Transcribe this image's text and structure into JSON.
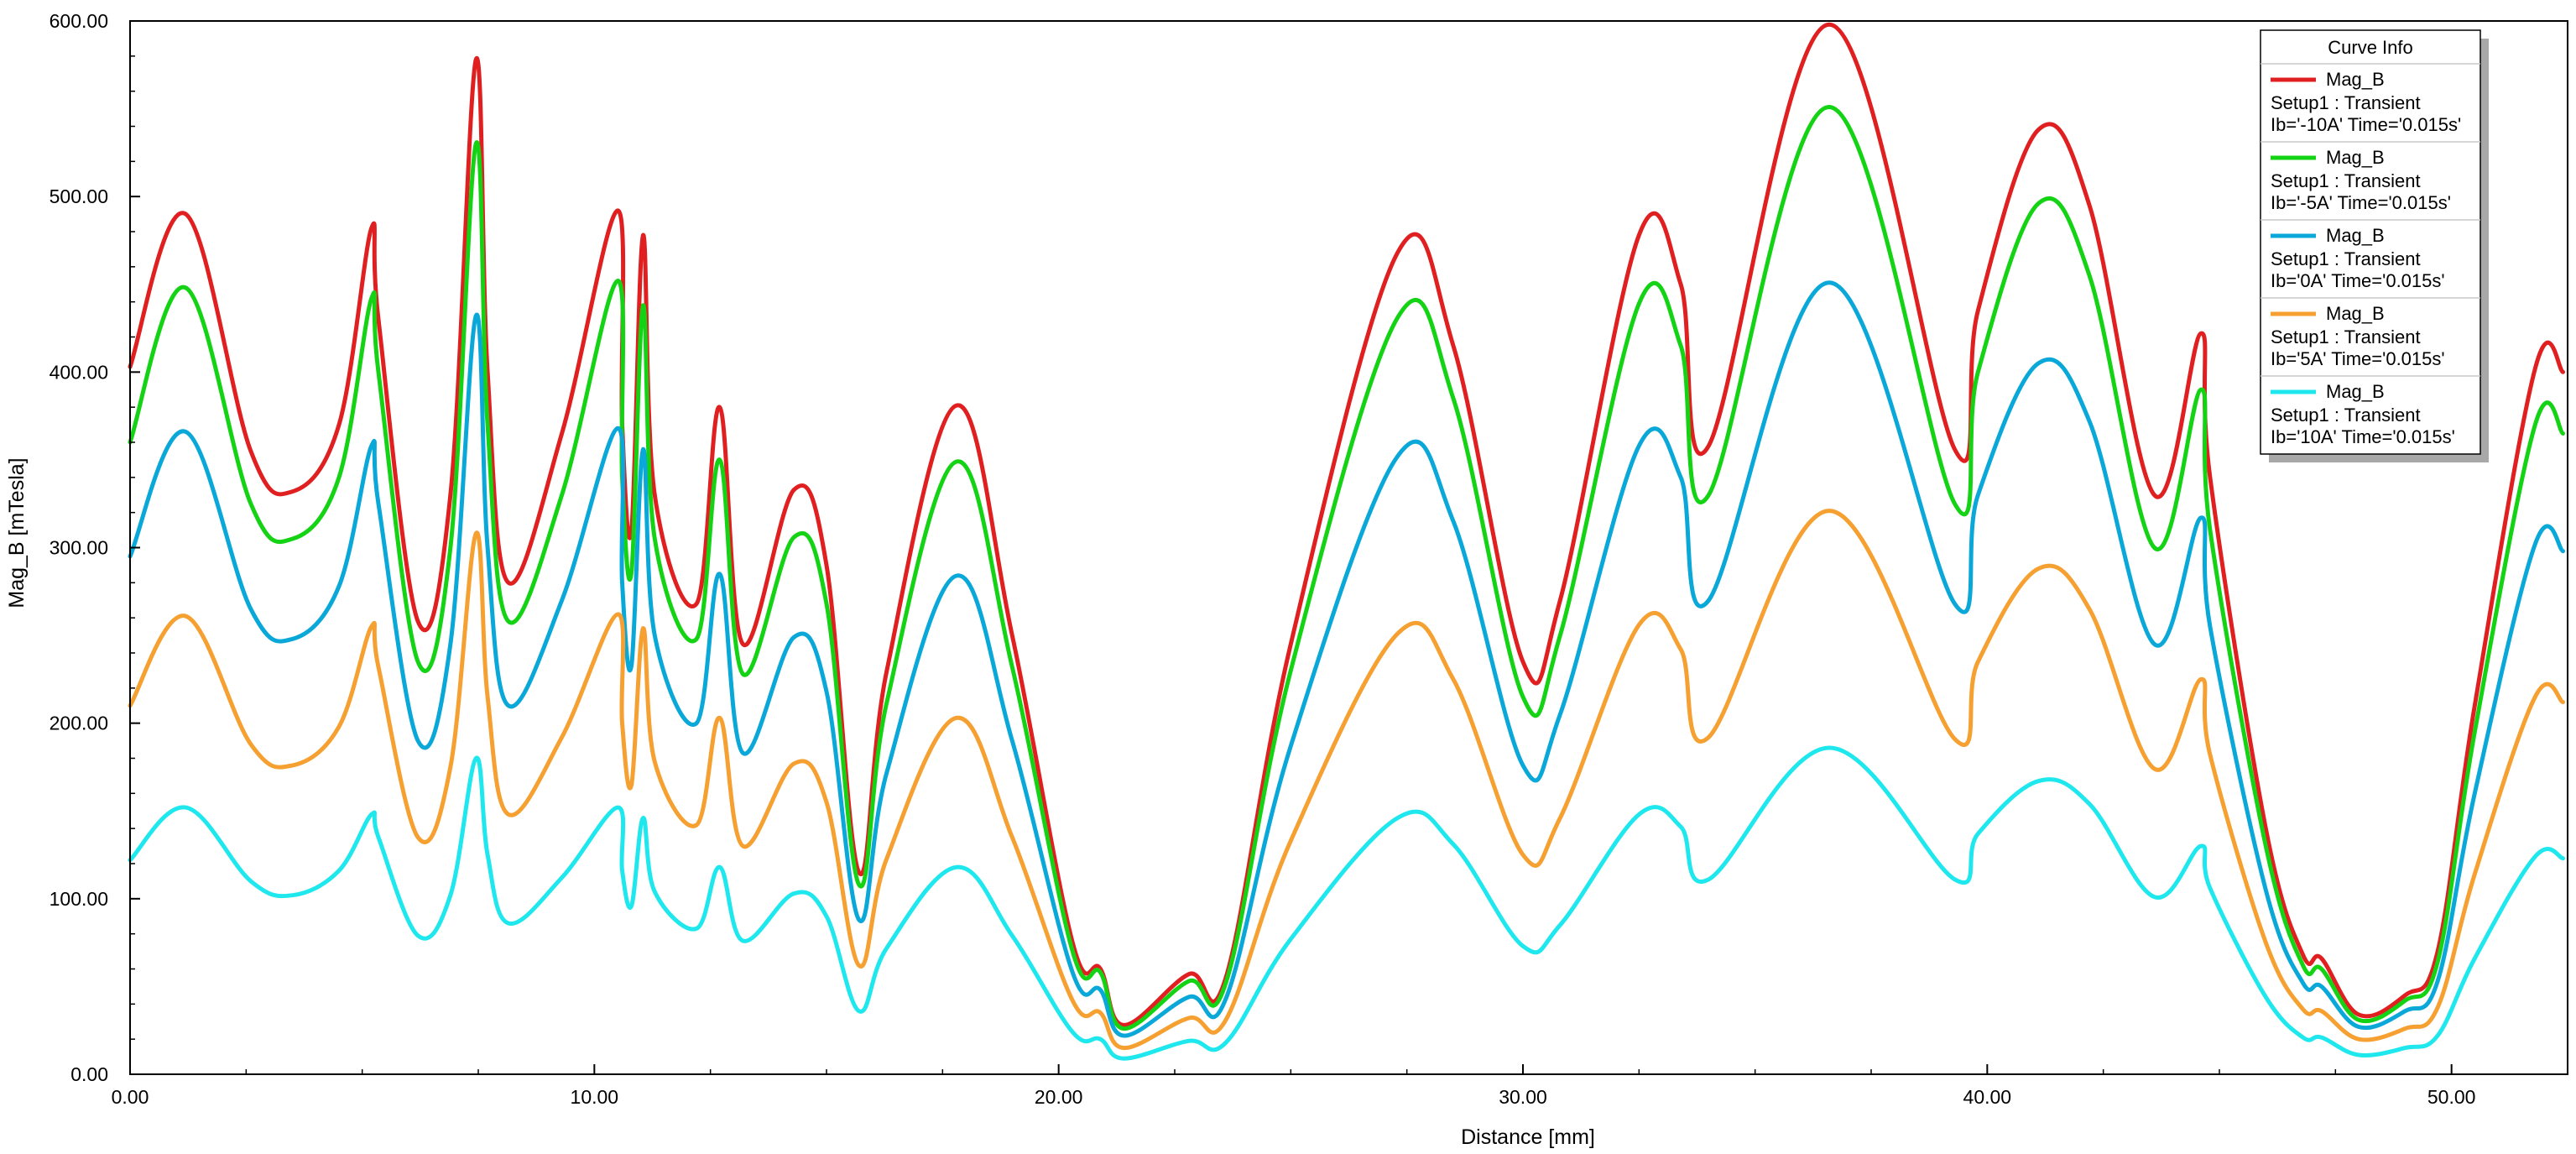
{
  "chart_data": {
    "type": "line",
    "xlabel": "Distance [mm]",
    "ylabel": "Mag_B [mTesla]",
    "xlim": [
      0,
      52.5
    ],
    "ylim": [
      0,
      600
    ],
    "xticks": [
      "0.00",
      "10.00",
      "20.00",
      "30.00",
      "40.00",
      "50.00"
    ],
    "xtick_values": [
      0,
      10,
      20,
      30,
      40,
      50
    ],
    "yticks": [
      "0.00",
      "100.00",
      "200.00",
      "300.00",
      "400.00",
      "500.00",
      "600.00"
    ],
    "ytick_values": [
      0,
      100,
      200,
      300,
      400,
      500,
      600
    ],
    "grid": false,
    "legend": {
      "title": "Curve Info",
      "placement": "top-right",
      "entries": [
        {
          "name": "Mag_B",
          "line2": "Setup1 : Transient",
          "line3": "Ib='-10A' Time='0.015s'",
          "color": "#e02020"
        },
        {
          "name": "Mag_B",
          "line2": "Setup1 : Transient",
          "line3": "Ib='-5A' Time='0.015s'",
          "color": "#14d314"
        },
        {
          "name": "Mag_B",
          "line2": "Setup1 : Transient",
          "line3": "Ib='0A' Time='0.015s'",
          "color": "#0aa8d8"
        },
        {
          "name": "Mag_B",
          "line2": "Setup1 : Transient",
          "line3": "Ib='5A' Time='0.015s'",
          "color": "#f5a030"
        },
        {
          "name": "Mag_B",
          "line2": "Setup1 : Transient",
          "line3": "Ib='10A' Time='0.015s'",
          "color": "#1ee8ee"
        }
      ]
    },
    "series": [
      {
        "name": "Ib='-10A' Time='0.015s'",
        "color": "#e02020",
        "points": [
          [
            0,
            403
          ],
          [
            1.2,
            490
          ],
          [
            2.6,
            355
          ],
          [
            3.5,
            332
          ],
          [
            4.5,
            370
          ],
          [
            5.2,
            482
          ],
          [
            5.35,
            430
          ],
          [
            6.2,
            258
          ],
          [
            6.9,
            330
          ],
          [
            7.45,
            578
          ],
          [
            7.7,
            400
          ],
          [
            8.15,
            280
          ],
          [
            9.3,
            365
          ],
          [
            10.5,
            492
          ],
          [
            10.6,
            370
          ],
          [
            10.8,
            310
          ],
          [
            11.05,
            478
          ],
          [
            11.3,
            330
          ],
          [
            12.2,
            268
          ],
          [
            12.7,
            380
          ],
          [
            13.2,
            245
          ],
          [
            14.3,
            333
          ],
          [
            15.0,
            290
          ],
          [
            15.7,
            115
          ],
          [
            16.3,
            230
          ],
          [
            17.8,
            381
          ],
          [
            19.0,
            250
          ],
          [
            20.3,
            75
          ],
          [
            20.9,
            60
          ],
          [
            21.4,
            28
          ],
          [
            22.8,
            57
          ],
          [
            23.6,
            55
          ],
          [
            25.0,
            245
          ],
          [
            27.3,
            468
          ],
          [
            28.5,
            415
          ],
          [
            30.0,
            235
          ],
          [
            30.8,
            270
          ],
          [
            32.5,
            478
          ],
          [
            33.4,
            450
          ],
          [
            34.0,
            358
          ],
          [
            36.6,
            598
          ],
          [
            39.3,
            356
          ],
          [
            39.8,
            435
          ],
          [
            41.1,
            538
          ],
          [
            42.2,
            495
          ],
          [
            43.6,
            330
          ],
          [
            44.6,
            422
          ],
          [
            44.8,
            340
          ],
          [
            46.0,
            140
          ],
          [
            46.8,
            68
          ],
          [
            47.2,
            66
          ],
          [
            48.0,
            34
          ],
          [
            49.0,
            45
          ],
          [
            49.7,
            70
          ],
          [
            50.5,
            210
          ],
          [
            51.8,
            402
          ],
          [
            52.4,
            400
          ]
        ]
      },
      {
        "name": "Ib='-5A' Time='0.015s'",
        "color": "#14d314",
        "points": [
          [
            0,
            360
          ],
          [
            1.2,
            448
          ],
          [
            2.6,
            325
          ],
          [
            3.5,
            305
          ],
          [
            4.5,
            340
          ],
          [
            5.2,
            442
          ],
          [
            5.35,
            400
          ],
          [
            6.2,
            235
          ],
          [
            6.9,
            300
          ],
          [
            7.45,
            530
          ],
          [
            7.7,
            370
          ],
          [
            8.15,
            258
          ],
          [
            9.3,
            330
          ],
          [
            10.5,
            452
          ],
          [
            10.6,
            340
          ],
          [
            10.8,
            286
          ],
          [
            11.05,
            438
          ],
          [
            11.3,
            305
          ],
          [
            12.2,
            248
          ],
          [
            12.7,
            350
          ],
          [
            13.2,
            228
          ],
          [
            14.3,
            306
          ],
          [
            15.0,
            268
          ],
          [
            15.7,
            108
          ],
          [
            16.3,
            212
          ],
          [
            17.8,
            349
          ],
          [
            19.0,
            232
          ],
          [
            20.3,
            70
          ],
          [
            20.9,
            58
          ],
          [
            21.4,
            26
          ],
          [
            22.8,
            53
          ],
          [
            23.6,
            52
          ],
          [
            25.0,
            230
          ],
          [
            27.3,
            431
          ],
          [
            28.5,
            385
          ],
          [
            30.0,
            215
          ],
          [
            30.8,
            250
          ],
          [
            32.5,
            439
          ],
          [
            33.4,
            415
          ],
          [
            34.0,
            330
          ],
          [
            36.6,
            551
          ],
          [
            39.3,
            325
          ],
          [
            39.8,
            400
          ],
          [
            41.1,
            496
          ],
          [
            42.2,
            455
          ],
          [
            43.6,
            300
          ],
          [
            44.6,
            390
          ],
          [
            44.8,
            310
          ],
          [
            46.0,
            130
          ],
          [
            46.8,
            62
          ],
          [
            47.2,
            60
          ],
          [
            48.0,
            31
          ],
          [
            49.0,
            42
          ],
          [
            49.7,
            64
          ],
          [
            50.5,
            195
          ],
          [
            51.8,
            370
          ],
          [
            52.4,
            365
          ]
        ]
      },
      {
        "name": "Ib='0A' Time='0.015s'",
        "color": "#0aa8d8",
        "points": [
          [
            0,
            295
          ],
          [
            1.2,
            366
          ],
          [
            2.6,
            265
          ],
          [
            3.5,
            248
          ],
          [
            4.5,
            278
          ],
          [
            5.2,
            358
          ],
          [
            5.35,
            325
          ],
          [
            6.2,
            190
          ],
          [
            6.9,
            245
          ],
          [
            7.45,
            432
          ],
          [
            7.7,
            300
          ],
          [
            8.15,
            210
          ],
          [
            9.3,
            270
          ],
          [
            10.5,
            368
          ],
          [
            10.6,
            280
          ],
          [
            10.8,
            233
          ],
          [
            11.05,
            356
          ],
          [
            11.3,
            250
          ],
          [
            12.2,
            200
          ],
          [
            12.7,
            285
          ],
          [
            13.2,
            183
          ],
          [
            14.3,
            249
          ],
          [
            15.0,
            218
          ],
          [
            15.7,
            88
          ],
          [
            16.3,
            172
          ],
          [
            17.8,
            284
          ],
          [
            19.0,
            190
          ],
          [
            20.3,
            58
          ],
          [
            20.9,
            48
          ],
          [
            21.4,
            22
          ],
          [
            22.8,
            44
          ],
          [
            23.6,
            43
          ],
          [
            25.0,
            187
          ],
          [
            27.3,
            352
          ],
          [
            28.5,
            315
          ],
          [
            30.0,
            176
          ],
          [
            30.8,
            205
          ],
          [
            32.5,
            358
          ],
          [
            33.4,
            340
          ],
          [
            34.0,
            270
          ],
          [
            36.6,
            451
          ],
          [
            39.3,
            268
          ],
          [
            39.8,
            330
          ],
          [
            41.1,
            405
          ],
          [
            42.2,
            372
          ],
          [
            43.6,
            245
          ],
          [
            44.6,
            317
          ],
          [
            44.8,
            255
          ],
          [
            46.0,
            105
          ],
          [
            46.8,
            52
          ],
          [
            47.2,
            50
          ],
          [
            48.0,
            27
          ],
          [
            49.0,
            36
          ],
          [
            49.7,
            53
          ],
          [
            50.5,
            160
          ],
          [
            51.8,
            302
          ],
          [
            52.4,
            298
          ]
        ]
      },
      {
        "name": "Ib='5A' Time='0.015s'",
        "color": "#f5a030",
        "points": [
          [
            0,
            210
          ],
          [
            1.2,
            261
          ],
          [
            2.6,
            188
          ],
          [
            3.5,
            176
          ],
          [
            4.5,
            198
          ],
          [
            5.2,
            255
          ],
          [
            5.35,
            232
          ],
          [
            6.2,
            135
          ],
          [
            6.9,
            175
          ],
          [
            7.45,
            308
          ],
          [
            7.7,
            215
          ],
          [
            8.15,
            148
          ],
          [
            9.3,
            192
          ],
          [
            10.5,
            262
          ],
          [
            10.6,
            200
          ],
          [
            10.8,
            165
          ],
          [
            11.05,
            254
          ],
          [
            11.3,
            178
          ],
          [
            12.2,
            142
          ],
          [
            12.7,
            203
          ],
          [
            13.2,
            130
          ],
          [
            14.3,
            177
          ],
          [
            15.0,
            155
          ],
          [
            15.7,
            62
          ],
          [
            16.3,
            123
          ],
          [
            17.8,
            203
          ],
          [
            19.0,
            135
          ],
          [
            20.3,
            42
          ],
          [
            20.9,
            35
          ],
          [
            21.4,
            15
          ],
          [
            22.8,
            32
          ],
          [
            23.6,
            31
          ],
          [
            25.0,
            133
          ],
          [
            27.3,
            251
          ],
          [
            28.5,
            225
          ],
          [
            30.0,
            125
          ],
          [
            30.8,
            146
          ],
          [
            32.5,
            256
          ],
          [
            33.4,
            242
          ],
          [
            34.0,
            192
          ],
          [
            36.6,
            321
          ],
          [
            39.3,
            191
          ],
          [
            39.8,
            235
          ],
          [
            41.1,
            288
          ],
          [
            42.2,
            265
          ],
          [
            43.6,
            174
          ],
          [
            44.6,
            225
          ],
          [
            44.8,
            182
          ],
          [
            46.0,
            75
          ],
          [
            46.8,
            37
          ],
          [
            47.2,
            36
          ],
          [
            48.0,
            20
          ],
          [
            49.0,
            26
          ],
          [
            49.7,
            38
          ],
          [
            50.5,
            114
          ],
          [
            51.8,
            215
          ],
          [
            52.4,
            212
          ]
        ]
      },
      {
        "name": "Ib='10A' Time='0.015s'",
        "color": "#1ee8ee",
        "points": [
          [
            0,
            122
          ],
          [
            1.2,
            152
          ],
          [
            2.6,
            110
          ],
          [
            3.5,
            102
          ],
          [
            4.5,
            116
          ],
          [
            5.2,
            148
          ],
          [
            5.35,
            135
          ],
          [
            6.2,
            79
          ],
          [
            6.9,
            102
          ],
          [
            7.45,
            180
          ],
          [
            7.7,
            125
          ],
          [
            8.15,
            86
          ],
          [
            9.3,
            112
          ],
          [
            10.5,
            152
          ],
          [
            10.6,
            116
          ],
          [
            10.8,
            96
          ],
          [
            11.05,
            146
          ],
          [
            11.3,
            104
          ],
          [
            12.2,
            83
          ],
          [
            12.7,
            118
          ],
          [
            13.2,
            76
          ],
          [
            14.3,
            103
          ],
          [
            15.0,
            90
          ],
          [
            15.7,
            36
          ],
          [
            16.3,
            72
          ],
          [
            17.8,
            118
          ],
          [
            19.0,
            79
          ],
          [
            20.3,
            24
          ],
          [
            20.9,
            20
          ],
          [
            21.4,
            9
          ],
          [
            22.8,
            19
          ],
          [
            23.6,
            18
          ],
          [
            25.0,
            77
          ],
          [
            27.3,
            146
          ],
          [
            28.5,
            131
          ],
          [
            30.0,
            73
          ],
          [
            30.8,
            85
          ],
          [
            32.5,
            148
          ],
          [
            33.4,
            141
          ],
          [
            34.0,
            111
          ],
          [
            36.6,
            186
          ],
          [
            39.3,
            111
          ],
          [
            39.8,
            137
          ],
          [
            41.1,
            167
          ],
          [
            42.2,
            154
          ],
          [
            43.6,
            101
          ],
          [
            44.6,
            130
          ],
          [
            44.8,
            106
          ],
          [
            46.0,
            44
          ],
          [
            46.8,
            21
          ],
          [
            47.2,
            21
          ],
          [
            48.0,
            11
          ],
          [
            49.0,
            15
          ],
          [
            49.7,
            22
          ],
          [
            50.5,
            66
          ],
          [
            51.8,
            124
          ],
          [
            52.4,
            123
          ]
        ]
      }
    ]
  }
}
